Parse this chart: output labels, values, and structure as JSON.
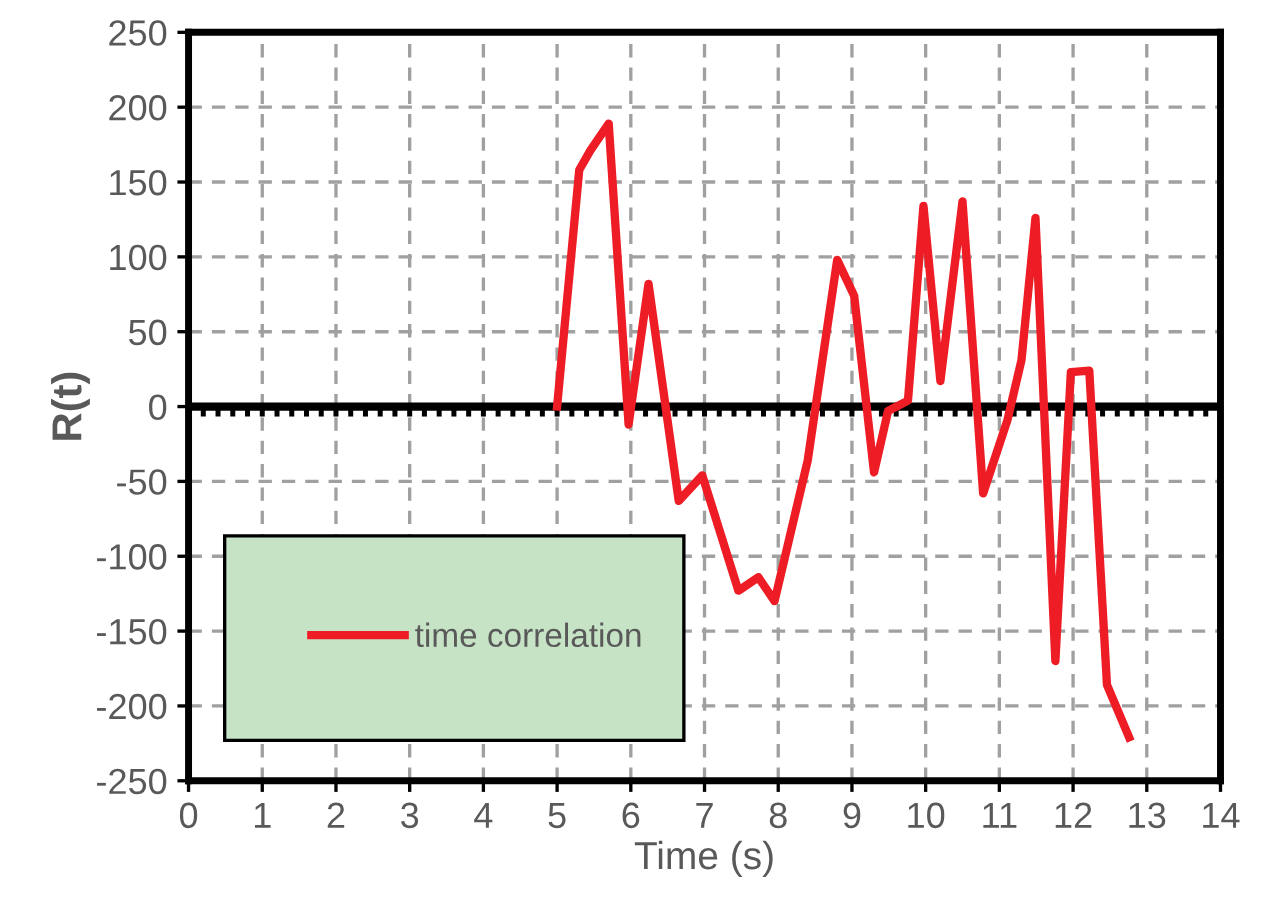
{
  "chart_data": {
    "type": "line",
    "xlabel": "Time (s)",
    "ylabel": "R(t)",
    "xlim": [
      0,
      14
    ],
    "xticks": [
      0,
      1,
      2,
      3,
      4,
      5,
      6,
      7,
      8,
      9,
      10,
      11,
      12,
      13,
      14
    ],
    "ylim": [
      -250,
      250
    ],
    "yticks": [
      -250,
      -200,
      -150,
      -100,
      -50,
      0,
      50,
      100,
      150,
      200,
      250
    ],
    "grid": true,
    "legend": "bottom left",
    "marker": "none",
    "line_style": "solid",
    "ref_lines": [
      {
        "axis": "y",
        "value": 0,
        "color": "#000000",
        "line_style": "solid"
      }
    ],
    "series": [
      {
        "name": "time correlation",
        "color": "#ee1c25",
        "x": [
          5,
          5.3,
          5.45,
          5.7,
          5.97,
          6.24,
          6.65,
          6.97,
          7.46,
          7.73,
          7.95,
          8.4,
          8.8,
          9.03,
          9.3,
          9.49,
          9.76,
          9.97,
          10.2,
          10.5,
          10.78,
          11.11,
          11.3,
          11.49,
          11.76,
          11.97,
          12.22,
          12.46,
          12.76
        ],
        "values": [
          0,
          158,
          171,
          189,
          -12,
          82,
          -63,
          -46,
          -123,
          -114,
          -130,
          -36,
          98,
          74,
          -44,
          -3,
          4,
          134,
          17,
          137,
          -58,
          -9,
          31,
          126,
          -170,
          23,
          24,
          -186,
          -221
        ]
      }
    ]
  }
}
